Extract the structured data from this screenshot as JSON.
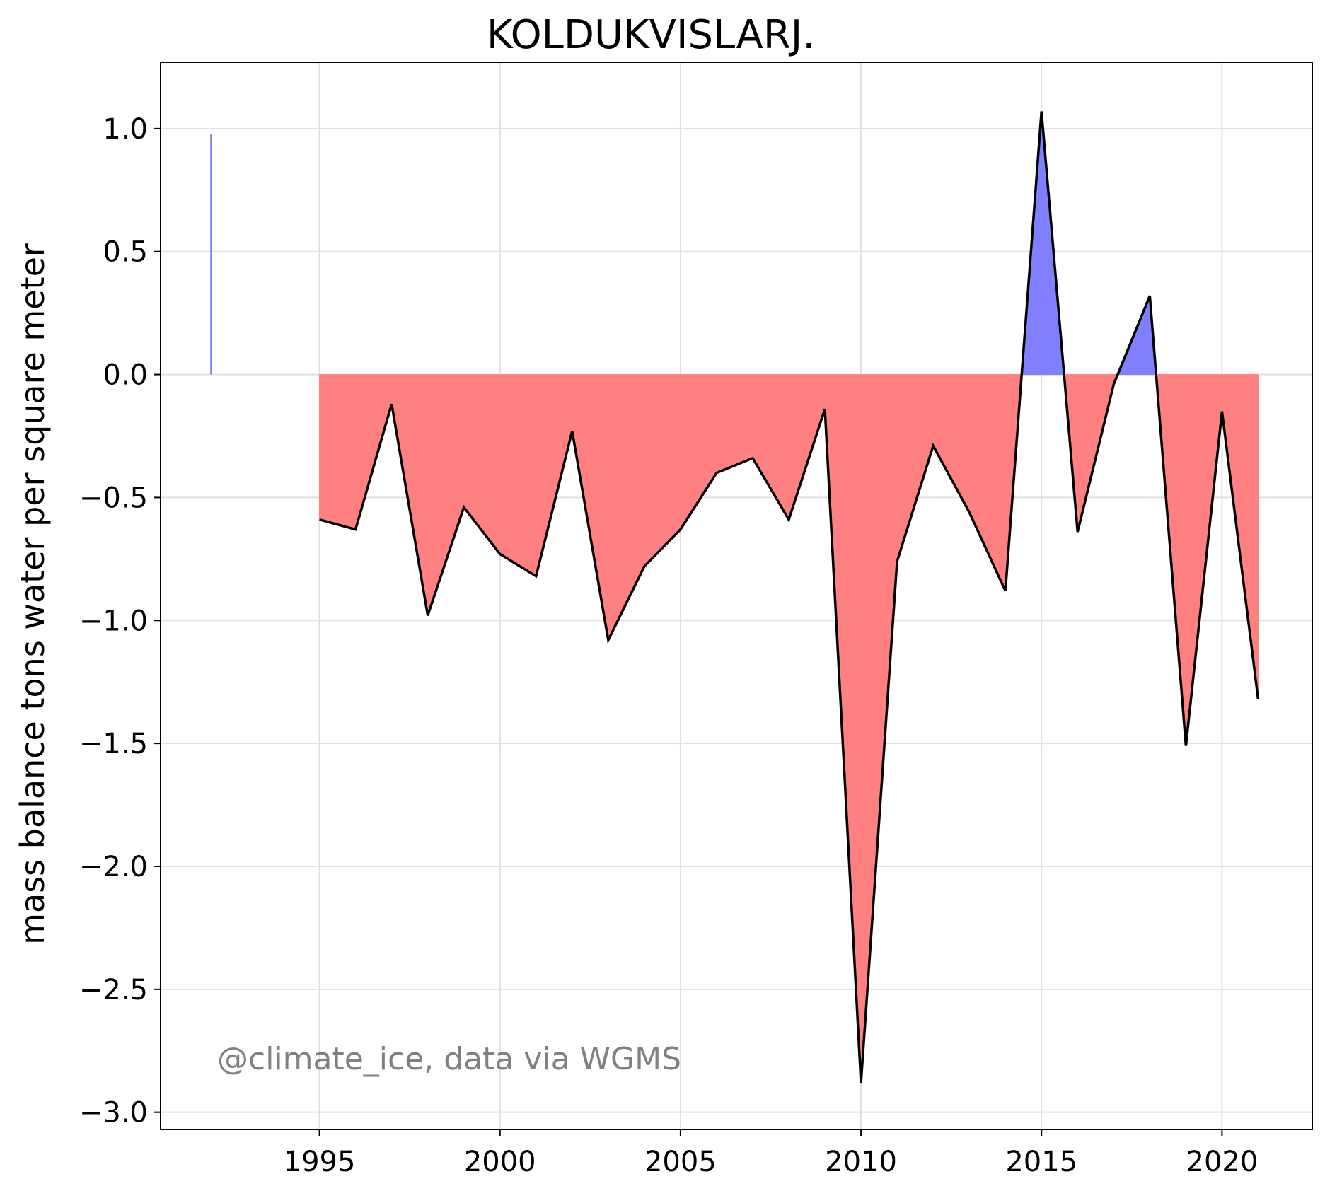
{
  "chart_data": {
    "type": "area",
    "title": "KOLDUKVISLARJ.",
    "xlabel": "",
    "ylabel": "mass balance tons water per square meter",
    "annotation": "@climate_ice, data via WGMS",
    "xlim": [
      1990.6,
      2022.5
    ],
    "ylim": [
      -3.07,
      1.27
    ],
    "xticks": [
      1995,
      2000,
      2005,
      2010,
      2015,
      2020
    ],
    "yticks": [
      1.0,
      0.5,
      0.0,
      -0.5,
      -1.0,
      -1.5,
      -2.0,
      -2.5,
      -3.0
    ],
    "ytick_labels": [
      "1.0",
      "0.5",
      "0.0",
      "−0.5",
      "−1.0",
      "−1.5",
      "−2.0",
      "−2.5",
      "−3.0"
    ],
    "grid": true,
    "isolated_bar": {
      "x": 1992,
      "value": 0.98
    },
    "x": [
      1995,
      1996,
      1997,
      1998,
      1999,
      2000,
      2001,
      2002,
      2003,
      2004,
      2005,
      2006,
      2007,
      2008,
      2009,
      2010,
      2011,
      2012,
      2013,
      2014,
      2015,
      2016,
      2017,
      2018,
      2019,
      2020,
      2021
    ],
    "values": [
      -0.59,
      -0.63,
      -0.12,
      -0.98,
      -0.54,
      -0.73,
      -0.82,
      -0.23,
      -1.08,
      -0.78,
      -0.63,
      -0.4,
      -0.34,
      -0.59,
      -0.14,
      -2.88,
      -0.76,
      -0.29,
      -0.56,
      -0.88,
      1.07,
      -0.64,
      -0.04,
      0.32,
      -1.51,
      -0.15,
      -1.32
    ],
    "colors": {
      "positive": "#8080ff",
      "negative": "#ff8080",
      "line": "#000000",
      "grid": "#e0e0e0"
    }
  }
}
